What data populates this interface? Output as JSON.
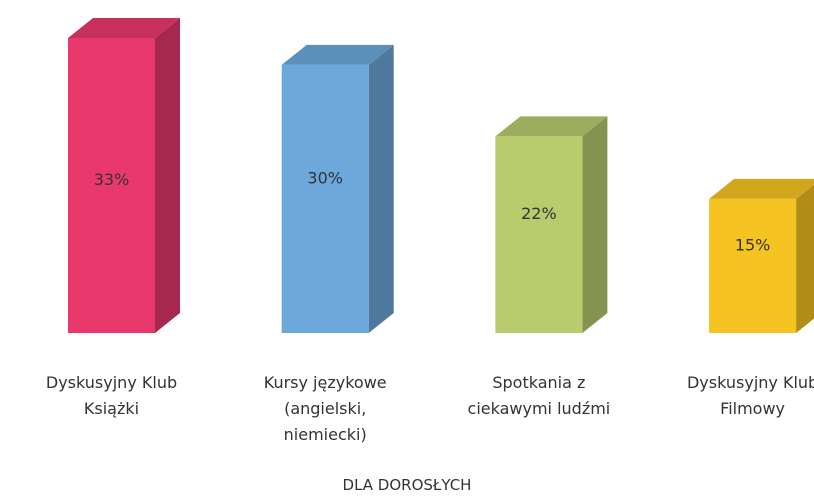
{
  "chart_data": {
    "type": "bar3d",
    "title": "DLA DOROSŁYCH",
    "categories": [
      "Dyskusyjny Klub Książki",
      "Kursy językowe (angielski, niemiecki)",
      "Spotkania z ciekawymi ludźmi",
      "Dyskusyjny Klub Filmowy"
    ],
    "values": [
      33,
      30,
      22,
      15
    ],
    "value_labels": [
      "33%",
      "30%",
      "22%",
      "15%"
    ],
    "colors": [
      "#e8386c",
      "#6ca8da",
      "#b8cc6e",
      "#f6c422"
    ]
  }
}
